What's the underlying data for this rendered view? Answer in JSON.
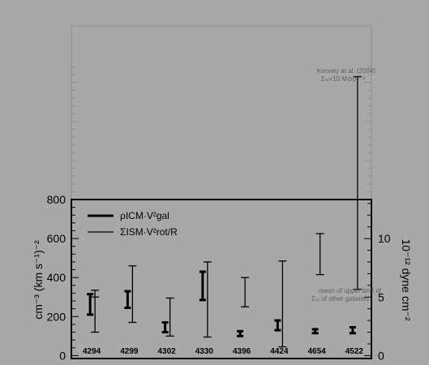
{
  "chart_data": {
    "type": "errorbar",
    "categories": [
      "4294",
      "4299",
      "4302",
      "4330",
      "4396",
      "4424",
      "4654",
      "4522"
    ],
    "ylabel": "cm⁻³ (km s⁻¹)⁻²",
    "y2label": "10⁻¹² dyne cm⁻²",
    "ylim": [
      -15,
      800
    ],
    "yticks": [
      0,
      200,
      400,
      600,
      800
    ],
    "y2ticks": [
      0,
      5,
      10
    ],
    "y2_per_y1": 0.01667,
    "legend": {
      "position": "top-left",
      "icm_label": "ρICM·V²gal",
      "ism_label": "ΣISM·V²rot/R"
    },
    "annotations": {
      "kenney_line1": "Kenney at al. (2004)",
      "kenney_line2": "Σₘ=10 M⊙pc⁻²",
      "upper_limit_line1": "mean of upper limit of",
      "upper_limit_line2": "Σₘ of other galaxies"
    },
    "icm_series": [
      {
        "category": "4294",
        "low": 210,
        "high": 315
      },
      {
        "category": "4299",
        "low": 245,
        "high": 330
      },
      {
        "category": "4302",
        "low": 120,
        "high": 170
      },
      {
        "category": "4330",
        "low": 285,
        "high": 430
      },
      {
        "category": "4396",
        "low": 100,
        "high": 125
      },
      {
        "category": "4424",
        "low": 130,
        "high": 180
      },
      {
        "category": "4654",
        "low": 115,
        "high": 135
      },
      {
        "category": "4522",
        "low": 115,
        "high": 145
      }
    ],
    "ism_series": [
      {
        "category": "4294",
        "low": 120,
        "high": 335
      },
      {
        "category": "4299",
        "low": 170,
        "high": 460
      },
      {
        "category": "4302",
        "low": 100,
        "high": 295
      },
      {
        "category": "4330",
        "low": 95,
        "high": 480
      },
      {
        "category": "4396",
        "low": 250,
        "high": 400
      },
      {
        "category": "4424",
        "low": 45,
        "high": 485
      },
      {
        "category": "4654",
        "low": 415,
        "high": 625
      },
      {
        "category": "4522",
        "low": 340,
        "high": 1430
      }
    ],
    "ism_marker_4294": 300
  }
}
